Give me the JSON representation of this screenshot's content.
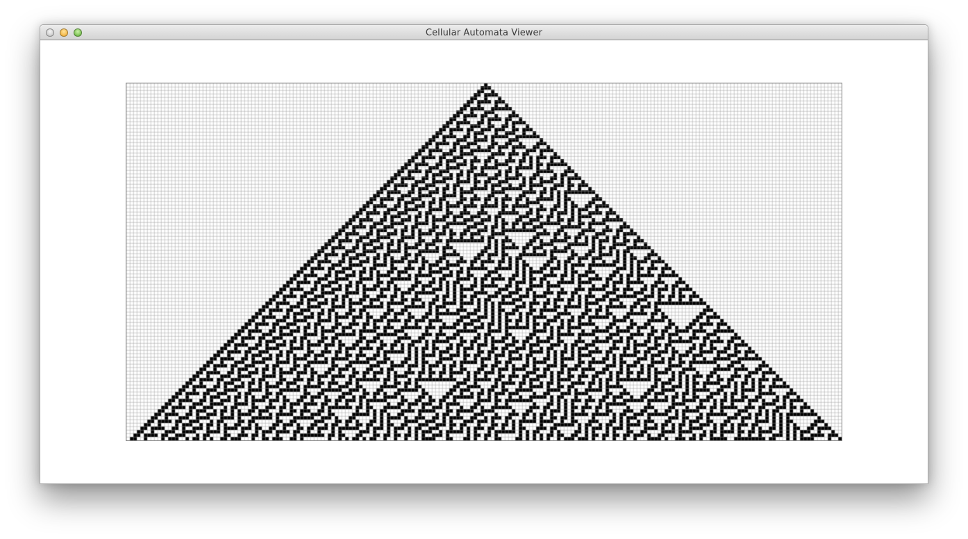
{
  "window": {
    "title": "Cellular Automata Viewer"
  },
  "controls": {
    "close_icon": "close-icon",
    "minimize_icon": "minimize-icon",
    "zoom_icon": "zoom-icon"
  },
  "automaton": {
    "rule": 30,
    "initial_state": "single-cell-center",
    "columns": 206,
    "generations": 103,
    "alive_color": "#000000",
    "dead_color": "#ffffff",
    "grid_color": "#9a9a9a"
  }
}
